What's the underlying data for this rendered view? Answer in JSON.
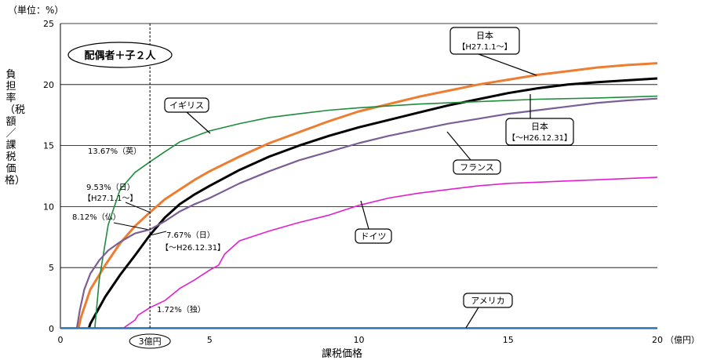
{
  "chart_data": {
    "type": "line",
    "y_unit_label": "（単位：%）",
    "ylabel": "負担率（税額／課税価格）",
    "xlabel": "課税価格",
    "x_unit_label": "（億円）",
    "xlim": [
      0,
      20
    ],
    "ylim": [
      0,
      25
    ],
    "x_ticks": [
      0,
      5,
      10,
      15,
      20
    ],
    "y_ticks": [
      0,
      5,
      10,
      15,
      20,
      25
    ],
    "grid": "horizontal",
    "scenario_label": "配偶者＋子２人",
    "reference_line": {
      "x": 3,
      "label": "3億円"
    },
    "series": [
      {
        "name": "日本",
        "sub": "【H27.1.1～】",
        "color": "#ED7D31",
        "points": [
          [
            0.6,
            0
          ],
          [
            0.7,
            1.0
          ],
          [
            1,
            3.2
          ],
          [
            1.5,
            5.2
          ],
          [
            2,
            7.0
          ],
          [
            2.5,
            8.4
          ],
          [
            3,
            9.53
          ],
          [
            3.5,
            10.6
          ],
          [
            4,
            11.4
          ],
          [
            4.5,
            12.2
          ],
          [
            5,
            12.9
          ],
          [
            6,
            14.1
          ],
          [
            7,
            15.2
          ],
          [
            8,
            16.1
          ],
          [
            9,
            17.0
          ],
          [
            10,
            17.8
          ],
          [
            11,
            18.4
          ],
          [
            12,
            19.0
          ],
          [
            13,
            19.5
          ],
          [
            14,
            20.0
          ],
          [
            15,
            20.4
          ],
          [
            16,
            20.8
          ],
          [
            17,
            21.1
          ],
          [
            18,
            21.4
          ],
          [
            19,
            21.6
          ],
          [
            20,
            21.75
          ]
        ]
      },
      {
        "name": "日本",
        "sub": "【～H26.12.31】",
        "color": "#000000",
        "points": [
          [
            0.95,
            0
          ],
          [
            1.0,
            0.4
          ],
          [
            1.5,
            2.6
          ],
          [
            2,
            4.4
          ],
          [
            2.5,
            6.0
          ],
          [
            3,
            7.67
          ],
          [
            3.5,
            9.1
          ],
          [
            4,
            10.2
          ],
          [
            4.5,
            11.0
          ],
          [
            5,
            11.7
          ],
          [
            6,
            13.0
          ],
          [
            7,
            14.1
          ],
          [
            8,
            15.0
          ],
          [
            9,
            15.8
          ],
          [
            10,
            16.5
          ],
          [
            11,
            17.1
          ],
          [
            12,
            17.7
          ],
          [
            13,
            18.3
          ],
          [
            14,
            18.8
          ],
          [
            15,
            19.3
          ],
          [
            16,
            19.7
          ],
          [
            17,
            20.0
          ],
          [
            18,
            20.2
          ],
          [
            19,
            20.35
          ],
          [
            20,
            20.5
          ]
        ]
      },
      {
        "name": "イギリス",
        "sub": "",
        "color": "#1E8C3C",
        "points": [
          [
            1.15,
            0
          ],
          [
            1.3,
            4.0
          ],
          [
            1.6,
            8.5
          ],
          [
            2,
            11.4
          ],
          [
            2.5,
            12.8
          ],
          [
            3,
            13.67
          ],
          [
            3.5,
            14.5
          ],
          [
            4,
            15.3
          ],
          [
            5,
            16.2
          ],
          [
            6,
            16.8
          ],
          [
            7,
            17.3
          ],
          [
            8,
            17.6
          ],
          [
            9,
            17.9
          ],
          [
            10,
            18.1
          ],
          [
            12,
            18.4
          ],
          [
            14,
            18.6
          ],
          [
            16,
            18.8
          ],
          [
            18,
            18.9
          ],
          [
            20,
            19.05
          ]
        ]
      },
      {
        "name": "フランス",
        "sub": "",
        "color": "#7A5F95",
        "points": [
          [
            0.55,
            0
          ],
          [
            0.65,
            1.5
          ],
          [
            0.8,
            3.2
          ],
          [
            1,
            4.5
          ],
          [
            1.3,
            5.6
          ],
          [
            1.6,
            6.4
          ],
          [
            2,
            7.1
          ],
          [
            2.5,
            7.8
          ],
          [
            3,
            8.12
          ],
          [
            3.5,
            8.8
          ],
          [
            4,
            9.6
          ],
          [
            4.5,
            10.2
          ],
          [
            5,
            10.7
          ],
          [
            6,
            11.9
          ],
          [
            7,
            12.9
          ],
          [
            8,
            13.8
          ],
          [
            9,
            14.5
          ],
          [
            10,
            15.2
          ],
          [
            11,
            15.8
          ],
          [
            12,
            16.3
          ],
          [
            13,
            16.8
          ],
          [
            14,
            17.2
          ],
          [
            15,
            17.6
          ],
          [
            16,
            17.9
          ],
          [
            17,
            18.2
          ],
          [
            18,
            18.5
          ],
          [
            19,
            18.7
          ],
          [
            20,
            18.85
          ]
        ]
      },
      {
        "name": "ドイツ",
        "sub": "",
        "color": "#E020D0",
        "points": [
          [
            2.1,
            0
          ],
          [
            2.2,
            0.2
          ],
          [
            2.5,
            0.7
          ],
          [
            2.6,
            1.1
          ],
          [
            3,
            1.72
          ],
          [
            3.5,
            2.3
          ],
          [
            4,
            3.3
          ],
          [
            4.5,
            4.0
          ],
          [
            5,
            4.8
          ],
          [
            5.3,
            5.2
          ],
          [
            5.5,
            6.1
          ],
          [
            6,
            7.2
          ],
          [
            7,
            8.0
          ],
          [
            8,
            8.7
          ],
          [
            9,
            9.3
          ],
          [
            10,
            10.1
          ],
          [
            11,
            10.7
          ],
          [
            12,
            11.1
          ],
          [
            13,
            11.4
          ],
          [
            14,
            11.7
          ],
          [
            15,
            11.9
          ],
          [
            16,
            12.0
          ],
          [
            17,
            12.1
          ],
          [
            18,
            12.2
          ],
          [
            19,
            12.3
          ],
          [
            20,
            12.4
          ]
        ]
      },
      {
        "name": "アメリカ",
        "sub": "",
        "color": "#2E75B6",
        "points": [
          [
            0,
            0.05
          ],
          [
            20,
            0.05
          ]
        ]
      }
    ],
    "annotations": [
      {
        "text": "13.67%（英）"
      },
      {
        "text": "9.53%（日）"
      },
      {
        "text": "【H27.1.1～】"
      },
      {
        "text": "8.12%（仏）"
      },
      {
        "text": "7.67%（日）"
      },
      {
        "text": "【～H26.12.31】"
      },
      {
        "text": "1.72%（独）"
      }
    ]
  }
}
